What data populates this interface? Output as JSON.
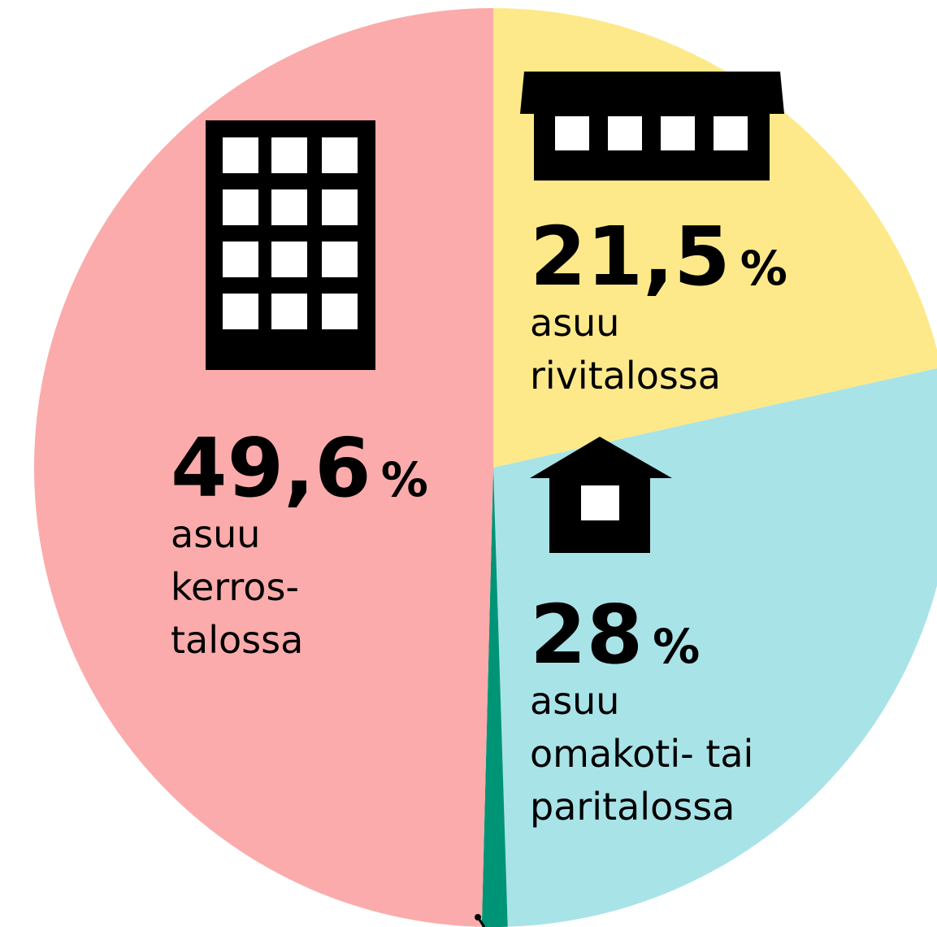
{
  "chart_data": {
    "type": "pie",
    "categories": [
      "asuu\nrivitalossa",
      "asuu\nomakoti- tai\nparitalossa",
      null,
      "asuu\nkerros-\ntalossa"
    ],
    "values": [
      21.5,
      28,
      0.9,
      49.6
    ],
    "value_labels": [
      "21,5 %",
      "28 %",
      null,
      "49,6 %"
    ],
    "colors": [
      "#fde98a",
      "#a8e3e8",
      "#009477",
      "#fbabab"
    ],
    "start_angle": 0,
    "direction": "clockwise"
  }
}
